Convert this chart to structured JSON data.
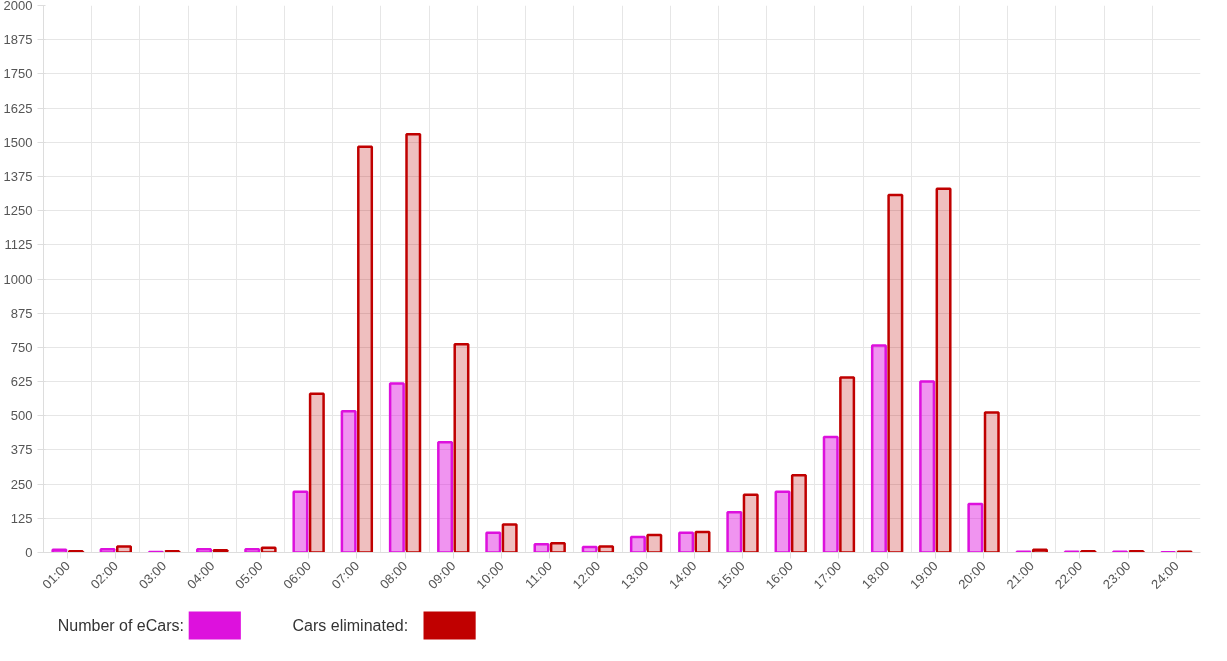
{
  "chart_data": {
    "type": "bar",
    "categories": [
      "01:00",
      "02:00",
      "03:00",
      "04:00",
      "05:00",
      "06:00",
      "07:00",
      "08:00",
      "09:00",
      "10:00",
      "11:00",
      "12:00",
      "13:00",
      "14:00",
      "15:00",
      "16:00",
      "17:00",
      "18:00",
      "19:00",
      "20:00",
      "21:00",
      "22:00",
      "23:00",
      "24:00"
    ],
    "series": [
      {
        "name": "Number of eCars:",
        "color": "#dd11dd",
        "values": [
          10,
          12,
          2,
          12,
          12,
          222,
          516,
          618,
          403,
          72,
          30,
          20,
          57,
          72,
          147,
          222,
          422,
          757,
          625,
          177,
          3,
          3,
          3,
          1
        ]
      },
      {
        "name": "Cars eliminated:",
        "color": "#c00000",
        "values": [
          5,
          22,
          5,
          8,
          17,
          580,
          1484,
          1529,
          761,
          102,
          34,
          22,
          64,
          75,
          211,
          282,
          640,
          1307,
          1330,
          512,
          10,
          5,
          5,
          3
        ]
      }
    ],
    "ylim": [
      0,
      2000
    ],
    "yticks": [
      0,
      125,
      250,
      375,
      500,
      625,
      750,
      875,
      1000,
      1125,
      1250,
      1375,
      1500,
      1625,
      1750,
      1875,
      2000
    ],
    "grid": true,
    "legend": "bottom left"
  }
}
